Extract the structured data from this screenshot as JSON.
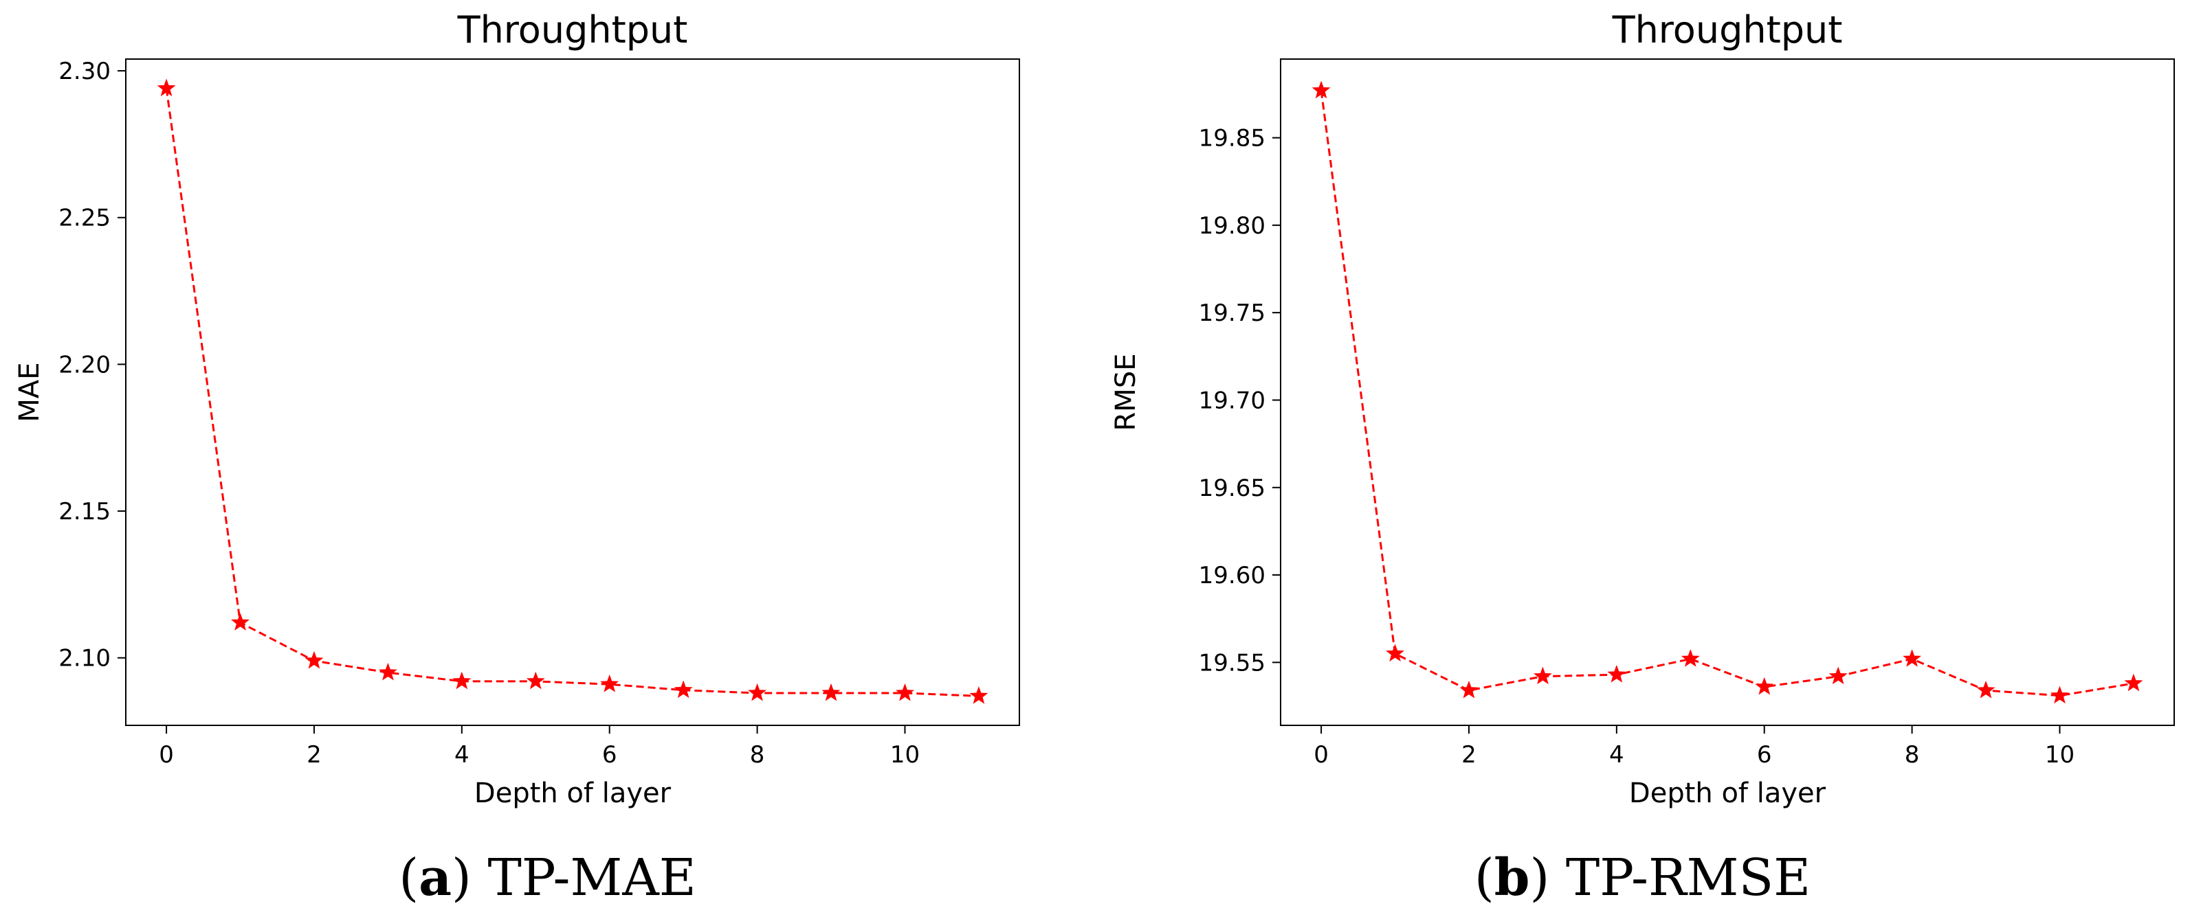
{
  "chart_data": [
    {
      "type": "line",
      "title": "Throughtput",
      "xlabel": "Depth of layer",
      "ylabel": "MAE",
      "caption_letter": "a",
      "caption_text": "TP-MAE",
      "xlim": [
        -0.55,
        11.55
      ],
      "ylim": [
        2.077,
        2.304
      ],
      "xticks": [
        0,
        2,
        4,
        6,
        8,
        10
      ],
      "yticks": [
        2.1,
        2.15,
        2.2,
        2.25,
        2.3
      ],
      "ytick_labels": [
        "2.10",
        "2.15",
        "2.20",
        "2.25",
        "2.30"
      ],
      "grid": false,
      "line_color": "#ff0000",
      "line_style": "dashed",
      "marker": "star",
      "x": [
        0,
        1,
        2,
        3,
        4,
        5,
        6,
        7,
        8,
        9,
        10,
        11
      ],
      "y": [
        2.294,
        2.112,
        2.099,
        2.095,
        2.092,
        2.092,
        2.091,
        2.089,
        2.088,
        2.088,
        2.088,
        2.087
      ]
    },
    {
      "type": "line",
      "title": "Throughtput",
      "xlabel": "Depth of layer",
      "ylabel": "RMSE",
      "caption_letter": "b",
      "caption_text": "TP-RMSE",
      "xlim": [
        -0.55,
        11.55
      ],
      "ylim": [
        19.514,
        19.895
      ],
      "xticks": [
        0,
        2,
        4,
        6,
        8,
        10
      ],
      "yticks": [
        19.55,
        19.6,
        19.65,
        19.7,
        19.75,
        19.8,
        19.85
      ],
      "ytick_labels": [
        "19.55",
        "19.60",
        "19.65",
        "19.70",
        "19.75",
        "19.80",
        "19.85"
      ],
      "grid": false,
      "line_color": "#ff0000",
      "line_style": "dashed",
      "marker": "star",
      "x": [
        0,
        1,
        2,
        3,
        4,
        5,
        6,
        7,
        8,
        9,
        10,
        11
      ],
      "y": [
        19.877,
        19.555,
        19.534,
        19.542,
        19.543,
        19.552,
        19.536,
        19.542,
        19.552,
        19.534,
        19.531,
        19.538
      ]
    }
  ]
}
